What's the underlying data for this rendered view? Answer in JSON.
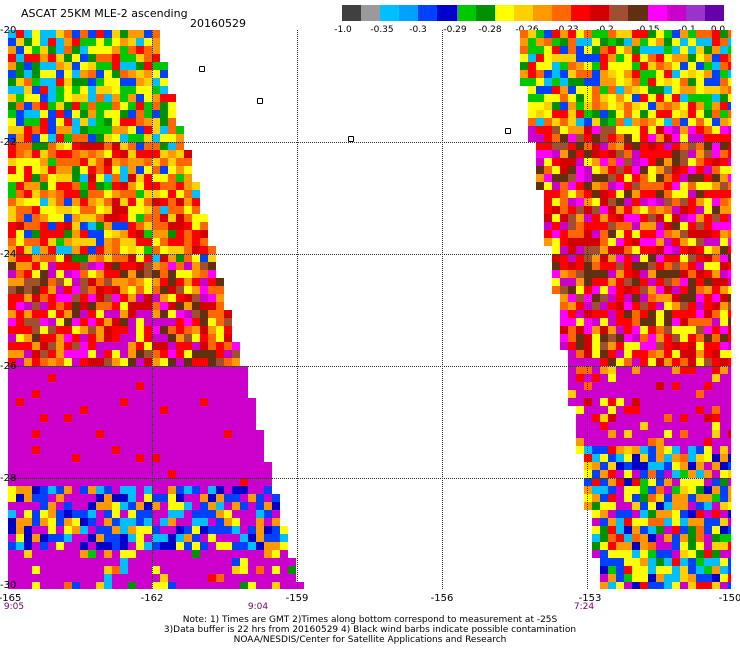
{
  "header": {
    "title": "ASCAT 25KM MLE-2 ascending",
    "date": "20160529"
  },
  "colorbar": {
    "colors": [
      "#404040",
      "#9a9a9a",
      "#00bfff",
      "#00a0ff",
      "#0040ff",
      "#0000c8",
      "#00c800",
      "#009000",
      "#ffff00",
      "#ffd000",
      "#ff9900",
      "#ff6600",
      "#ff0000",
      "#d20000",
      "#a05030",
      "#603010",
      "#ff00ff",
      "#cc00cc",
      "#9933cc",
      "#6600aa"
    ],
    "labels": [
      "-1.0",
      "-0.35",
      "-0.3",
      "-0.29",
      "-0.28",
      "-0.26",
      "-0.23",
      "-0.2",
      "-0.15",
      "-0.1",
      "0.0"
    ]
  },
  "axes": {
    "lat_labels": [
      "-20",
      "-22",
      "-24",
      "-26",
      "-28",
      "-30"
    ],
    "lon_labels": [
      "-165",
      "-162",
      "-159",
      "-156",
      "-153",
      "-150"
    ],
    "time_labels": [
      "9:05",
      "9:04",
      "7:24"
    ]
  },
  "notes": [
    "Note: 1) Times are GMT 2)Times along bottom correspond to measurement at -25S",
    "3)Data buffer is 22 hrs from 20160529 4) Black wind barbs indicate possible contamination",
    "NOAA/NESDIS/Center for Satellite Applications and Research"
  ]
}
